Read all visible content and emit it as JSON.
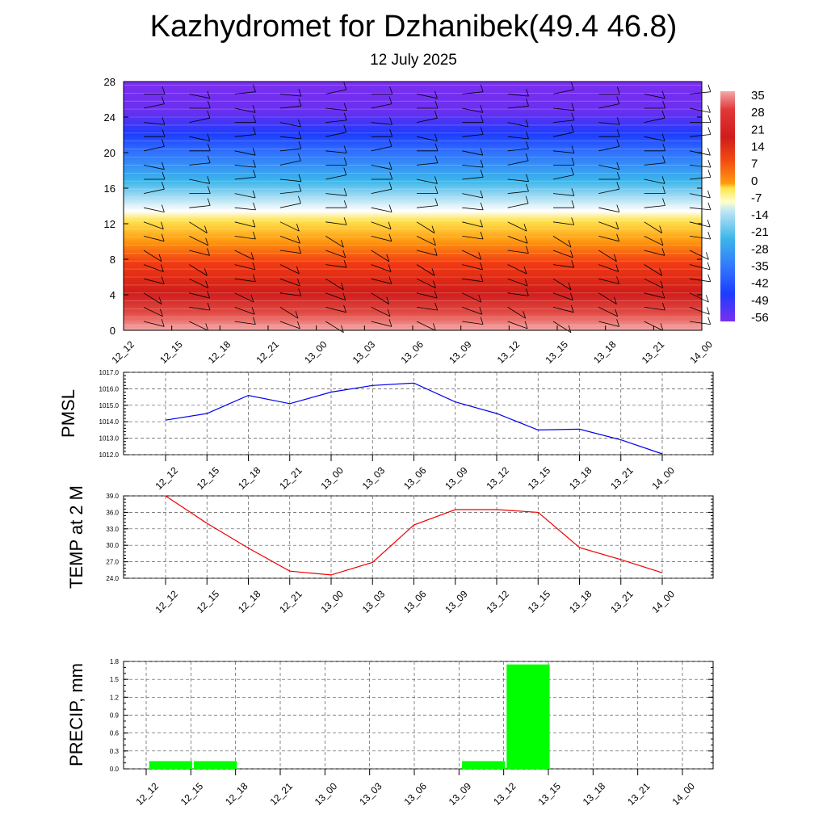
{
  "header": {
    "title": "Kazhydromet for Dzhanibek(49.4 46.8)",
    "subtitle": "12 July 2025"
  },
  "chart_data": [
    {
      "type": "heatmap",
      "description_id": "cross-section",
      "ylim": [
        0,
        28
      ],
      "y_ticks": [
        "0",
        "4",
        "8",
        "12",
        "16",
        "20",
        "24",
        "28"
      ],
      "x_ticks": [
        "12_12",
        "12_15",
        "12_18",
        "12_21",
        "13_00",
        "13_03",
        "13_06",
        "13_09",
        "13_12",
        "13_15",
        "13_18",
        "13_21",
        "14_00"
      ],
      "colorbar_labels": [
        "35",
        "28",
        "21",
        "14",
        "7",
        "0",
        "-7",
        "-14",
        "-21",
        "-28",
        "-35",
        "-42",
        "-49",
        "-56"
      ],
      "freezing_level": 13.5,
      "colors": {
        "hot_bottom": "#f4a8a8",
        "red": "#d9221e",
        "orange": "#ff8000",
        "yellow": "#ffe24a",
        "light_blue": "#bfe6f5",
        "cyan": "#3cb6ea",
        "blue": "#1c4bff",
        "violet": "#7b2ff0"
      }
    },
    {
      "type": "line",
      "ylabel": "PMSL",
      "ylim": [
        1012.0,
        1017.0
      ],
      "y_ticks": [
        "1012.0",
        "1013.0",
        "1014.0",
        "1015.0",
        "1016.0",
        "1017.0"
      ],
      "categories": [
        "12_12",
        "12_15",
        "12_18",
        "12_21",
        "13_00",
        "13_03",
        "13_06",
        "13_09",
        "13_12",
        "13_15",
        "13_18",
        "13_21",
        "14_00"
      ],
      "values": [
        1014.1,
        1014.5,
        1015.6,
        1015.1,
        1015.8,
        1016.2,
        1016.35,
        1015.2,
        1014.5,
        1013.5,
        1013.55,
        1012.9,
        1012.05
      ],
      "color": "#0000ee",
      "grid": true
    },
    {
      "type": "line",
      "ylabel": "TEMP at 2 M",
      "ylim": [
        24.0,
        39.0
      ],
      "y_ticks": [
        "24.0",
        "27.0",
        "30.0",
        "33.0",
        "36.0",
        "39.0"
      ],
      "categories": [
        "12_12",
        "12_15",
        "12_18",
        "12_21",
        "13_00",
        "13_03",
        "13_06",
        "13_09",
        "13_12",
        "13_15",
        "13_18",
        "13_21",
        "14_00"
      ],
      "values": [
        39.0,
        34.0,
        29.5,
        25.3,
        24.6,
        26.9,
        33.7,
        36.5,
        36.5,
        36.0,
        29.6,
        27.4,
        25.0
      ],
      "color": "#ee0000",
      "grid": true
    },
    {
      "type": "bar",
      "ylabel": "PRECIP, mm",
      "ylim": [
        0.0,
        1.8
      ],
      "y_ticks": [
        "0.0",
        "0.3",
        "0.6",
        "0.9",
        "1.2",
        "1.5",
        "1.8"
      ],
      "categories": [
        "12_12",
        "12_15",
        "12_18",
        "12_21",
        "13_00",
        "13_03",
        "13_06",
        "13_09",
        "13_12",
        "13_15",
        "13_18",
        "13_21",
        "14_00"
      ],
      "values": [
        0,
        0.13,
        0.13,
        0,
        0,
        0,
        0,
        0,
        0.13,
        1.75,
        0,
        0,
        0
      ],
      "color": "#00ff00",
      "grid": true
    }
  ]
}
